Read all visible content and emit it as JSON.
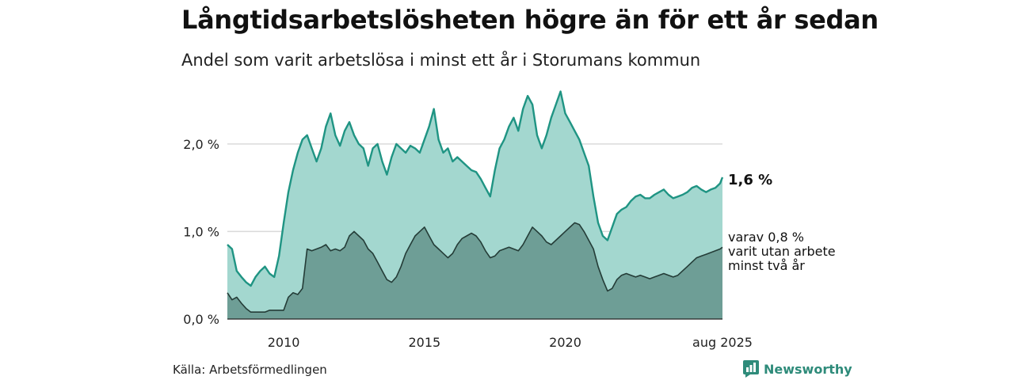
{
  "title": "Långtidsarbetslösheten högre än för ett år sedan",
  "subtitle": "Andel som varit arbetslösa i minst ett år i Storumans kommun",
  "source": "Källa: Arbetsförmedlingen",
  "brand": "Newsworthy",
  "colors": {
    "series_total_fill": "#a3d7cf",
    "series_total_line": "#1f9483",
    "series_long_fill": "#6e9e96",
    "series_long_line": "#243c37",
    "grid": "#d9d9d9",
    "brand": "#2e8b7a"
  },
  "chart_data": {
    "type": "area",
    "x_start": "2008-01",
    "x_end": "2025-08",
    "x_ticks": [
      {
        "x": "2010-01",
        "label": "2010"
      },
      {
        "x": "2015-01",
        "label": "2015"
      },
      {
        "x": "2020-01",
        "label": "2020"
      },
      {
        "x": "2025-08",
        "label": "aug 2025"
      }
    ],
    "y_ticks": [
      {
        "y": 0.0,
        "label": "0,0 %"
      },
      {
        "y": 1.0,
        "label": "1,0 %"
      },
      {
        "y": 2.0,
        "label": "2,0 %"
      }
    ],
    "ylim": [
      0,
      2.65
    ],
    "grid": true,
    "series": [
      {
        "id": "total",
        "end_label": "1,6 %",
        "points": [
          [
            "2008-01",
            0.85
          ],
          [
            "2008-03",
            0.8
          ],
          [
            "2008-05",
            0.55
          ],
          [
            "2008-07",
            0.48
          ],
          [
            "2008-09",
            0.42
          ],
          [
            "2008-11",
            0.38
          ],
          [
            "2009-01",
            0.48
          ],
          [
            "2009-03",
            0.55
          ],
          [
            "2009-05",
            0.6
          ],
          [
            "2009-07",
            0.52
          ],
          [
            "2009-09",
            0.48
          ],
          [
            "2009-11",
            0.72
          ],
          [
            "2010-01",
            1.1
          ],
          [
            "2010-03",
            1.45
          ],
          [
            "2010-05",
            1.7
          ],
          [
            "2010-07",
            1.9
          ],
          [
            "2010-09",
            2.05
          ],
          [
            "2010-11",
            2.1
          ],
          [
            "2011-01",
            1.95
          ],
          [
            "2011-03",
            1.8
          ],
          [
            "2011-05",
            1.95
          ],
          [
            "2011-07",
            2.2
          ],
          [
            "2011-09",
            2.35
          ],
          [
            "2011-11",
            2.1
          ],
          [
            "2012-01",
            1.98
          ],
          [
            "2012-03",
            2.15
          ],
          [
            "2012-05",
            2.25
          ],
          [
            "2012-07",
            2.1
          ],
          [
            "2012-09",
            2.0
          ],
          [
            "2012-11",
            1.95
          ],
          [
            "2013-01",
            1.75
          ],
          [
            "2013-03",
            1.95
          ],
          [
            "2013-05",
            2.0
          ],
          [
            "2013-07",
            1.8
          ],
          [
            "2013-09",
            1.65
          ],
          [
            "2013-11",
            1.85
          ],
          [
            "2014-01",
            2.0
          ],
          [
            "2014-03",
            1.95
          ],
          [
            "2014-05",
            1.9
          ],
          [
            "2014-07",
            1.98
          ],
          [
            "2014-09",
            1.95
          ],
          [
            "2014-11",
            1.9
          ],
          [
            "2015-01",
            2.05
          ],
          [
            "2015-03",
            2.2
          ],
          [
            "2015-05",
            2.4
          ],
          [
            "2015-07",
            2.05
          ],
          [
            "2015-09",
            1.9
          ],
          [
            "2015-11",
            1.95
          ],
          [
            "2016-01",
            1.8
          ],
          [
            "2016-03",
            1.85
          ],
          [
            "2016-05",
            1.8
          ],
          [
            "2016-07",
            1.75
          ],
          [
            "2016-09",
            1.7
          ],
          [
            "2016-11",
            1.68
          ],
          [
            "2017-01",
            1.6
          ],
          [
            "2017-03",
            1.5
          ],
          [
            "2017-05",
            1.4
          ],
          [
            "2017-07",
            1.7
          ],
          [
            "2017-09",
            1.95
          ],
          [
            "2017-11",
            2.05
          ],
          [
            "2018-01",
            2.2
          ],
          [
            "2018-03",
            2.3
          ],
          [
            "2018-05",
            2.15
          ],
          [
            "2018-07",
            2.4
          ],
          [
            "2018-09",
            2.55
          ],
          [
            "2018-11",
            2.45
          ],
          [
            "2019-01",
            2.1
          ],
          [
            "2019-03",
            1.95
          ],
          [
            "2019-05",
            2.1
          ],
          [
            "2019-07",
            2.3
          ],
          [
            "2019-09",
            2.45
          ],
          [
            "2019-11",
            2.6
          ],
          [
            "2020-01",
            2.35
          ],
          [
            "2020-03",
            2.25
          ],
          [
            "2020-05",
            2.15
          ],
          [
            "2020-07",
            2.05
          ],
          [
            "2020-09",
            1.9
          ],
          [
            "2020-11",
            1.75
          ],
          [
            "2021-01",
            1.4
          ],
          [
            "2021-03",
            1.1
          ],
          [
            "2021-05",
            0.95
          ],
          [
            "2021-07",
            0.9
          ],
          [
            "2021-09",
            1.05
          ],
          [
            "2021-11",
            1.2
          ],
          [
            "2022-01",
            1.25
          ],
          [
            "2022-03",
            1.28
          ],
          [
            "2022-05",
            1.35
          ],
          [
            "2022-07",
            1.4
          ],
          [
            "2022-09",
            1.42
          ],
          [
            "2022-11",
            1.38
          ],
          [
            "2023-01",
            1.38
          ],
          [
            "2023-03",
            1.42
          ],
          [
            "2023-05",
            1.45
          ],
          [
            "2023-07",
            1.48
          ],
          [
            "2023-09",
            1.42
          ],
          [
            "2023-11",
            1.38
          ],
          [
            "2024-01",
            1.4
          ],
          [
            "2024-03",
            1.42
          ],
          [
            "2024-05",
            1.45
          ],
          [
            "2024-07",
            1.5
          ],
          [
            "2024-09",
            1.52
          ],
          [
            "2024-11",
            1.48
          ],
          [
            "2025-01",
            1.45
          ],
          [
            "2025-03",
            1.48
          ],
          [
            "2025-05",
            1.5
          ],
          [
            "2025-07",
            1.55
          ],
          [
            "2025-08",
            1.62
          ]
        ]
      },
      {
        "id": "long",
        "end_label": [
          "varav 0,8 %",
          "varit utan arbete",
          "minst två år"
        ],
        "points": [
          [
            "2008-01",
            0.3
          ],
          [
            "2008-03",
            0.22
          ],
          [
            "2008-05",
            0.25
          ],
          [
            "2008-07",
            0.18
          ],
          [
            "2008-09",
            0.12
          ],
          [
            "2008-11",
            0.08
          ],
          [
            "2009-01",
            0.08
          ],
          [
            "2009-03",
            0.08
          ],
          [
            "2009-05",
            0.08
          ],
          [
            "2009-07",
            0.1
          ],
          [
            "2009-09",
            0.1
          ],
          [
            "2009-11",
            0.1
          ],
          [
            "2010-01",
            0.1
          ],
          [
            "2010-03",
            0.25
          ],
          [
            "2010-05",
            0.3
          ],
          [
            "2010-07",
            0.28
          ],
          [
            "2010-09",
            0.35
          ],
          [
            "2010-11",
            0.8
          ],
          [
            "2011-01",
            0.78
          ],
          [
            "2011-03",
            0.8
          ],
          [
            "2011-05",
            0.82
          ],
          [
            "2011-07",
            0.85
          ],
          [
            "2011-09",
            0.78
          ],
          [
            "2011-11",
            0.8
          ],
          [
            "2012-01",
            0.78
          ],
          [
            "2012-03",
            0.82
          ],
          [
            "2012-05",
            0.95
          ],
          [
            "2012-07",
            1.0
          ],
          [
            "2012-09",
            0.95
          ],
          [
            "2012-11",
            0.9
          ],
          [
            "2013-01",
            0.8
          ],
          [
            "2013-03",
            0.75
          ],
          [
            "2013-05",
            0.65
          ],
          [
            "2013-07",
            0.55
          ],
          [
            "2013-09",
            0.45
          ],
          [
            "2013-11",
            0.42
          ],
          [
            "2014-01",
            0.48
          ],
          [
            "2014-03",
            0.6
          ],
          [
            "2014-05",
            0.75
          ],
          [
            "2014-07",
            0.85
          ],
          [
            "2014-09",
            0.95
          ],
          [
            "2014-11",
            1.0
          ],
          [
            "2015-01",
            1.05
          ],
          [
            "2015-03",
            0.95
          ],
          [
            "2015-05",
            0.85
          ],
          [
            "2015-07",
            0.8
          ],
          [
            "2015-09",
            0.75
          ],
          [
            "2015-11",
            0.7
          ],
          [
            "2016-01",
            0.75
          ],
          [
            "2016-03",
            0.85
          ],
          [
            "2016-05",
            0.92
          ],
          [
            "2016-07",
            0.95
          ],
          [
            "2016-09",
            0.98
          ],
          [
            "2016-11",
            0.95
          ],
          [
            "2017-01",
            0.88
          ],
          [
            "2017-03",
            0.78
          ],
          [
            "2017-05",
            0.7
          ],
          [
            "2017-07",
            0.72
          ],
          [
            "2017-09",
            0.78
          ],
          [
            "2017-11",
            0.8
          ],
          [
            "2018-01",
            0.82
          ],
          [
            "2018-03",
            0.8
          ],
          [
            "2018-05",
            0.78
          ],
          [
            "2018-07",
            0.85
          ],
          [
            "2018-09",
            0.95
          ],
          [
            "2018-11",
            1.05
          ],
          [
            "2019-01",
            1.0
          ],
          [
            "2019-03",
            0.95
          ],
          [
            "2019-05",
            0.88
          ],
          [
            "2019-07",
            0.85
          ],
          [
            "2019-09",
            0.9
          ],
          [
            "2019-11",
            0.95
          ],
          [
            "2020-01",
            1.0
          ],
          [
            "2020-03",
            1.05
          ],
          [
            "2020-05",
            1.1
          ],
          [
            "2020-07",
            1.08
          ],
          [
            "2020-09",
            1.0
          ],
          [
            "2020-11",
            0.9
          ],
          [
            "2021-01",
            0.8
          ],
          [
            "2021-03",
            0.6
          ],
          [
            "2021-05",
            0.45
          ],
          [
            "2021-07",
            0.32
          ],
          [
            "2021-09",
            0.35
          ],
          [
            "2021-11",
            0.45
          ],
          [
            "2022-01",
            0.5
          ],
          [
            "2022-03",
            0.52
          ],
          [
            "2022-05",
            0.5
          ],
          [
            "2022-07",
            0.48
          ],
          [
            "2022-09",
            0.5
          ],
          [
            "2022-11",
            0.48
          ],
          [
            "2023-01",
            0.46
          ],
          [
            "2023-03",
            0.48
          ],
          [
            "2023-05",
            0.5
          ],
          [
            "2023-07",
            0.52
          ],
          [
            "2023-09",
            0.5
          ],
          [
            "2023-11",
            0.48
          ],
          [
            "2024-01",
            0.5
          ],
          [
            "2024-03",
            0.55
          ],
          [
            "2024-05",
            0.6
          ],
          [
            "2024-07",
            0.65
          ],
          [
            "2024-09",
            0.7
          ],
          [
            "2024-11",
            0.72
          ],
          [
            "2025-01",
            0.74
          ],
          [
            "2025-03",
            0.76
          ],
          [
            "2025-05",
            0.78
          ],
          [
            "2025-07",
            0.8
          ],
          [
            "2025-08",
            0.82
          ]
        ]
      }
    ]
  }
}
